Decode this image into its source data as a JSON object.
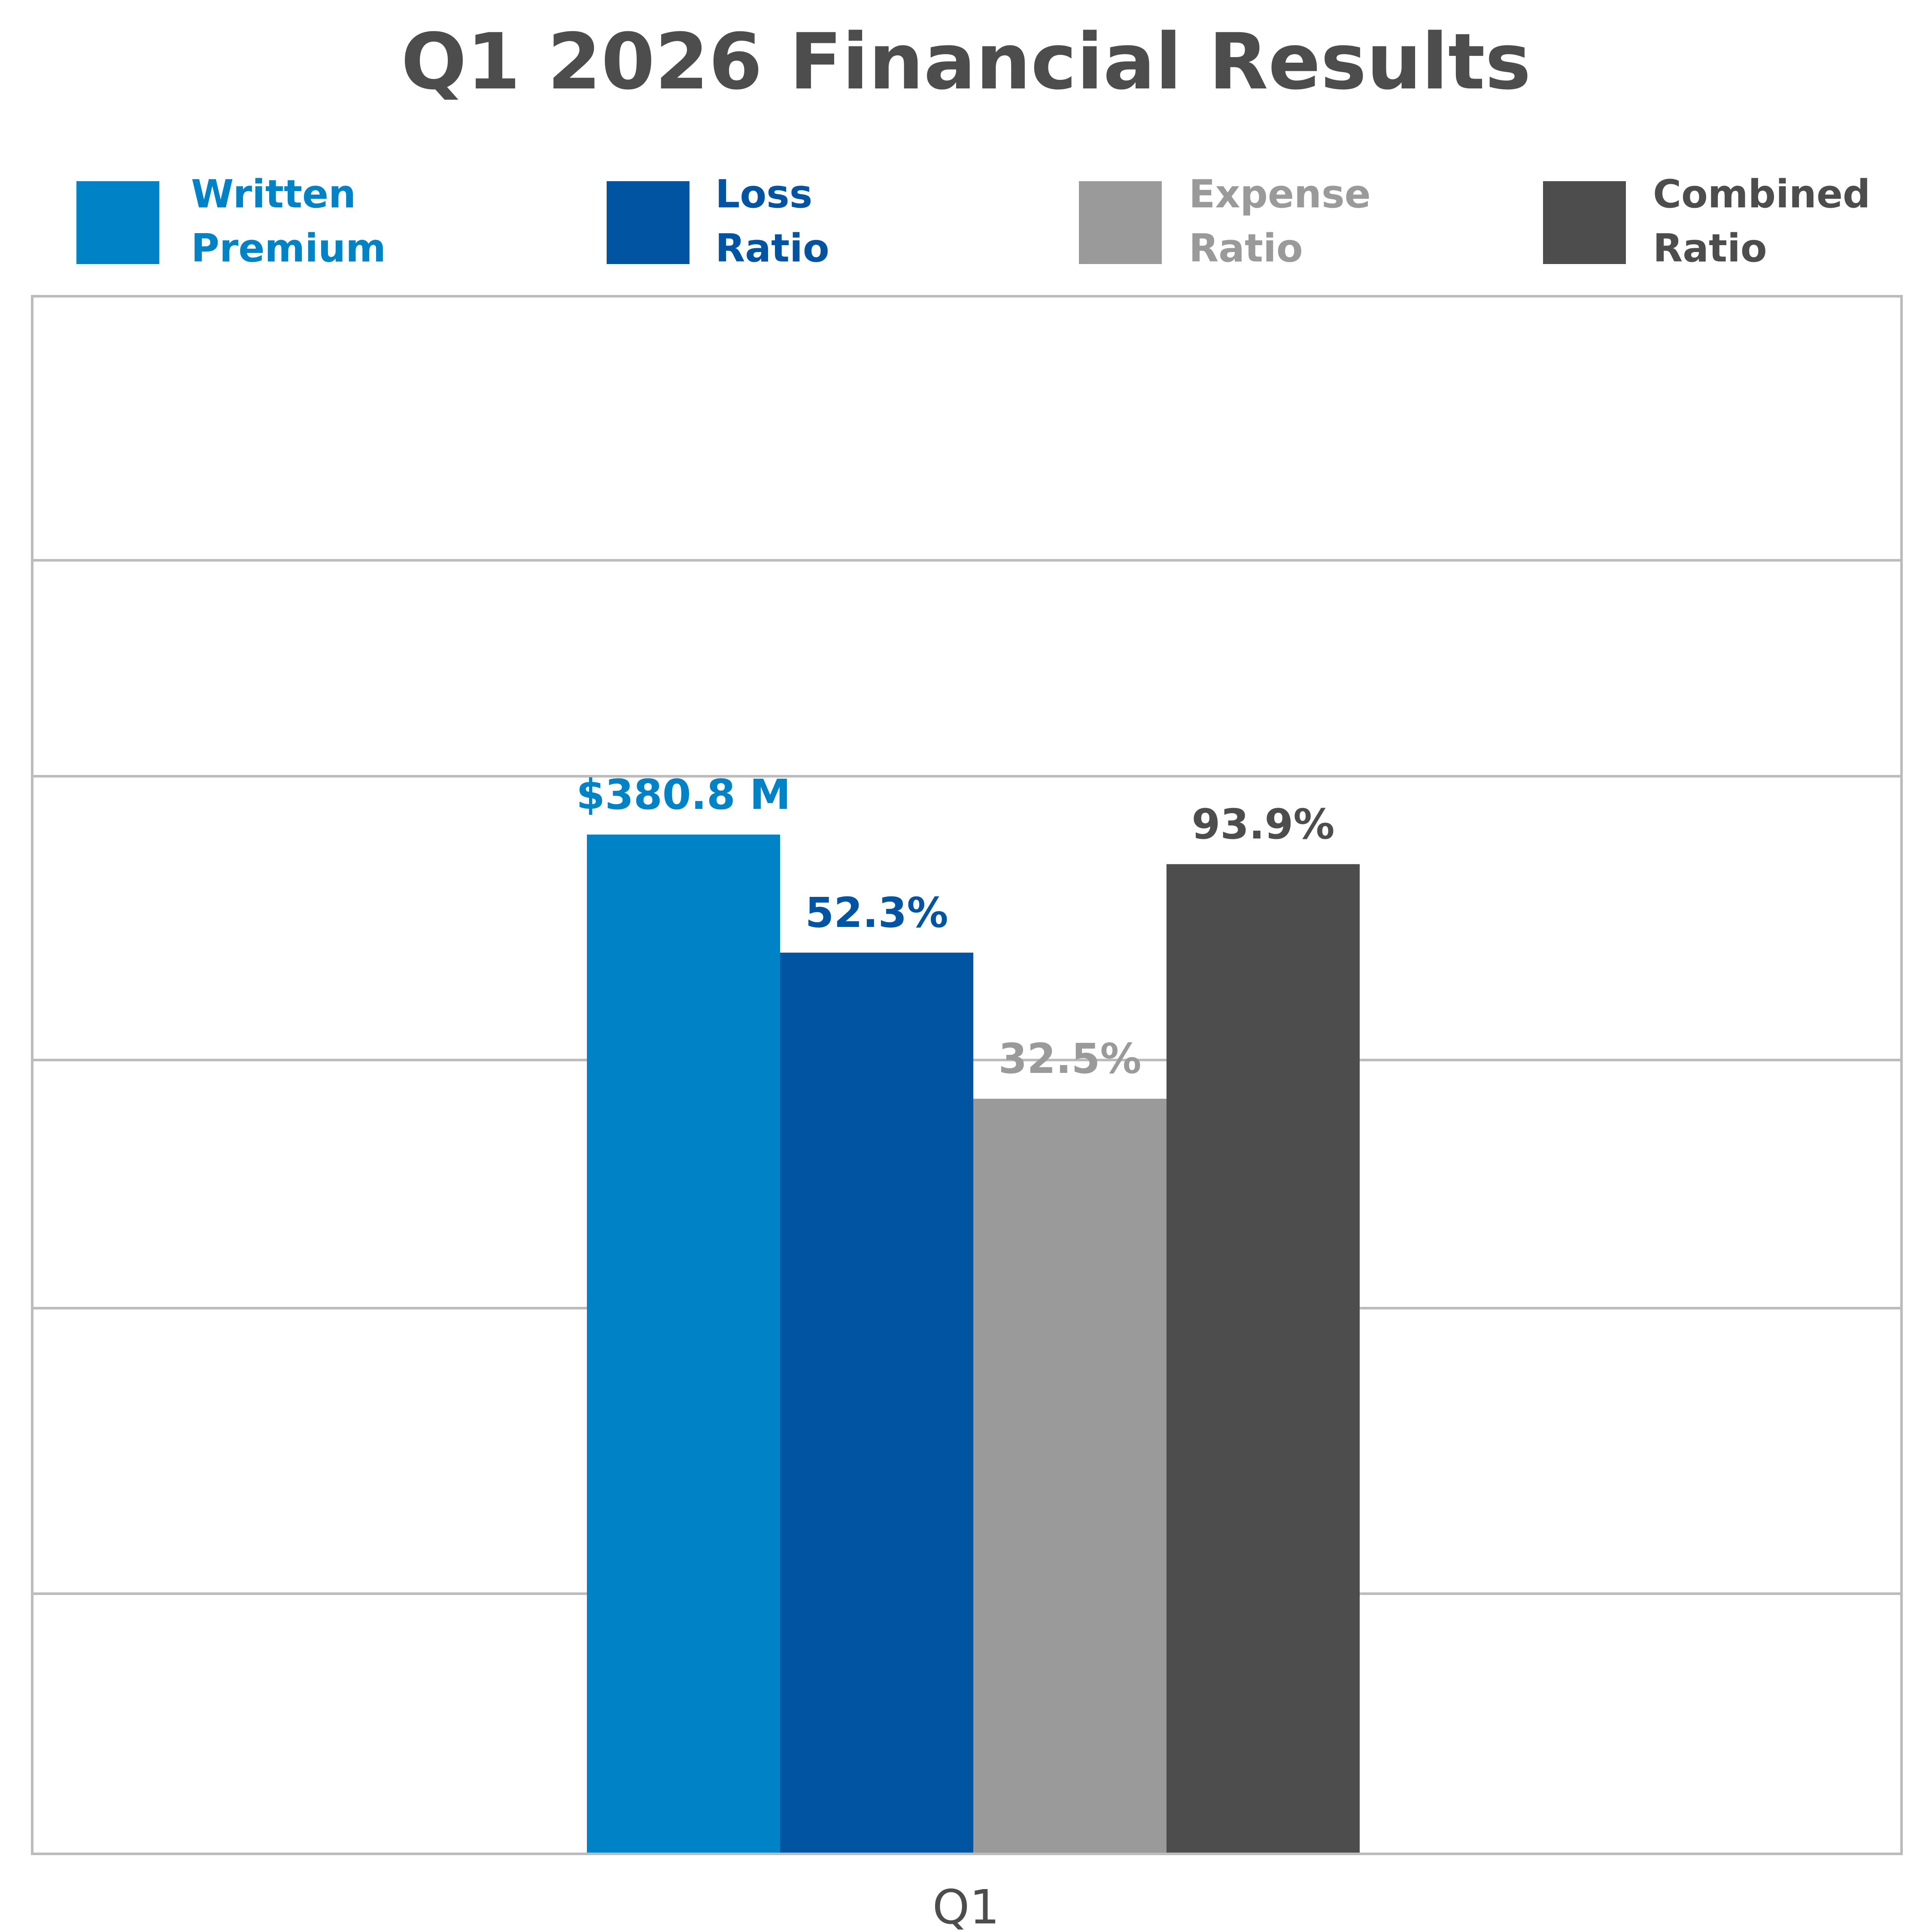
{
  "colors": {
    "written_premium": "#0082c6",
    "loss_ratio": "#0054a2",
    "expense_ratio": "#9a9a9a",
    "combined_ratio": "#4d4d4d",
    "grid": "#bcbcbc",
    "text": "#4d4d4d"
  },
  "chart_data": {
    "type": "bar",
    "title": "Q1 2026 Financial Results",
    "categories": [
      "Q1"
    ],
    "grid": true,
    "legend_position": "top",
    "axis_ticks_visible": false,
    "series": [
      {
        "key": "written_premium",
        "name_lines": [
          "Written",
          "Premium"
        ],
        "value": 380.8,
        "unit": "$M",
        "label": "$380.8 M",
        "relative_height": 0.6544
      },
      {
        "key": "loss_ratio",
        "name_lines": [
          "Loss",
          "Ratio"
        ],
        "value": 52.3,
        "unit": "%",
        "label": "52.3%",
        "relative_height": 0.5786
      },
      {
        "key": "expense_ratio",
        "name_lines": [
          "Expense",
          "Ratio"
        ],
        "value": 32.5,
        "unit": "%",
        "label": "32.5%",
        "relative_height": 0.4848
      },
      {
        "key": "combined_ratio",
        "name_lines": [
          "Combined",
          "Ratio"
        ],
        "value": 93.9,
        "unit": "%",
        "label": "93.9%",
        "relative_height": 0.6354
      }
    ]
  }
}
